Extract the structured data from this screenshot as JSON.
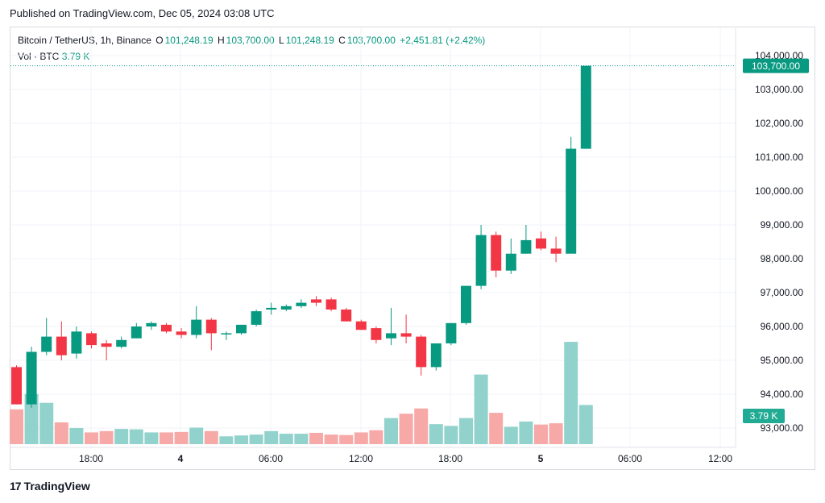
{
  "published": "Published on TradingView.com, Dec 05, 2024 03:08 UTC",
  "legend": {
    "symbol": "Bitcoin / TetherUS, 1h, Binance",
    "o_label": "O",
    "o": "101,248.19",
    "h_label": "H",
    "h": "103,700.00",
    "l_label": "L",
    "l": "101,248.19",
    "c_label": "C",
    "c": "103,700.00",
    "change": "+2,451.81 (+2.42%)"
  },
  "volume_label": {
    "name": "Vol · BTC",
    "value": "3.79 K"
  },
  "logo": {
    "mark": "17",
    "text": "TradingView"
  },
  "colors": {
    "up": "#089981",
    "down": "#f23645",
    "vol_up": "#92d2cc",
    "vol_down": "#f7a9a7"
  },
  "chart_data": {
    "type": "candlestick",
    "x_ticks": [
      "18:00",
      "4",
      "06:00",
      "12:00",
      "18:00",
      "5",
      "06:00",
      "12:00"
    ],
    "y_ticks": [
      "104,000.00",
      "103,000.00",
      "102,000.00",
      "101,000.00",
      "100,000.00",
      "99,000.00",
      "98,000.00",
      "97,000.00",
      "96,000.00",
      "95,000.00",
      "94,000.00",
      "93,000.00"
    ],
    "ylim": [
      92600,
      104400
    ],
    "last_price_label": "103,700.00",
    "last_volume_label": "3.79 K",
    "candles": [
      {
        "o": 94800,
        "h": 94850,
        "l": 93700,
        "c": 93700,
        "v": 0.8
      },
      {
        "o": 93700,
        "h": 95400,
        "l": 93600,
        "c": 95250,
        "v": 1.15
      },
      {
        "o": 95250,
        "h": 96250,
        "l": 95150,
        "c": 95700,
        "v": 0.95
      },
      {
        "o": 95700,
        "h": 96150,
        "l": 95000,
        "c": 95150,
        "v": 0.5
      },
      {
        "o": 95200,
        "h": 96000,
        "l": 95050,
        "c": 95850,
        "v": 0.37
      },
      {
        "o": 95800,
        "h": 95850,
        "l": 95350,
        "c": 95450,
        "v": 0.27
      },
      {
        "o": 95500,
        "h": 95600,
        "l": 95000,
        "c": 95400,
        "v": 0.3
      },
      {
        "o": 95400,
        "h": 95700,
        "l": 95350,
        "c": 95600,
        "v": 0.35
      },
      {
        "o": 95650,
        "h": 96100,
        "l": 95650,
        "c": 96000,
        "v": 0.34
      },
      {
        "o": 96000,
        "h": 96150,
        "l": 95900,
        "c": 96100,
        "v": 0.27
      },
      {
        "o": 96050,
        "h": 96100,
        "l": 95800,
        "c": 95850,
        "v": 0.27
      },
      {
        "o": 95850,
        "h": 95950,
        "l": 95650,
        "c": 95750,
        "v": 0.28
      },
      {
        "o": 95750,
        "h": 96600,
        "l": 95650,
        "c": 96200,
        "v": 0.38
      },
      {
        "o": 96200,
        "h": 96250,
        "l": 95300,
        "c": 95800,
        "v": 0.3
      },
      {
        "o": 95800,
        "h": 95850,
        "l": 95600,
        "c": 95800,
        "v": 0.18
      },
      {
        "o": 95800,
        "h": 96050,
        "l": 95750,
        "c": 96050,
        "v": 0.2
      },
      {
        "o": 96050,
        "h": 96500,
        "l": 96000,
        "c": 96450,
        "v": 0.22
      },
      {
        "o": 96500,
        "h": 96700,
        "l": 96350,
        "c": 96550,
        "v": 0.3
      },
      {
        "o": 96500,
        "h": 96650,
        "l": 96450,
        "c": 96600,
        "v": 0.24
      },
      {
        "o": 96600,
        "h": 96800,
        "l": 96550,
        "c": 96700,
        "v": 0.24
      },
      {
        "o": 96800,
        "h": 96900,
        "l": 96600,
        "c": 96700,
        "v": 0.26
      },
      {
        "o": 96800,
        "h": 96850,
        "l": 96450,
        "c": 96500,
        "v": 0.22
      },
      {
        "o": 96500,
        "h": 96550,
        "l": 96150,
        "c": 96150,
        "v": 0.21
      },
      {
        "o": 96150,
        "h": 96200,
        "l": 95900,
        "c": 95900,
        "v": 0.27
      },
      {
        "o": 95950,
        "h": 96000,
        "l": 95500,
        "c": 95600,
        "v": 0.32
      },
      {
        "o": 95650,
        "h": 96550,
        "l": 95450,
        "c": 95800,
        "v": 0.6
      },
      {
        "o": 95800,
        "h": 96350,
        "l": 95500,
        "c": 95700,
        "v": 0.7
      },
      {
        "o": 95700,
        "h": 95750,
        "l": 94550,
        "c": 94800,
        "v": 0.82
      },
      {
        "o": 94800,
        "h": 95500,
        "l": 94700,
        "c": 95500,
        "v": 0.46
      },
      {
        "o": 95500,
        "h": 96100,
        "l": 95450,
        "c": 96100,
        "v": 0.42
      },
      {
        "o": 96100,
        "h": 97200,
        "l": 96050,
        "c": 97200,
        "v": 0.6
      },
      {
        "o": 97200,
        "h": 99000,
        "l": 97100,
        "c": 98700,
        "v": 1.6
      },
      {
        "o": 98700,
        "h": 98800,
        "l": 97450,
        "c": 97650,
        "v": 0.72
      },
      {
        "o": 97650,
        "h": 98600,
        "l": 97550,
        "c": 98150,
        "v": 0.4
      },
      {
        "o": 98150,
        "h": 99000,
        "l": 98150,
        "c": 98550,
        "v": 0.52
      },
      {
        "o": 98600,
        "h": 98800,
        "l": 98250,
        "c": 98300,
        "v": 0.45
      },
      {
        "o": 98300,
        "h": 98650,
        "l": 97900,
        "c": 98150,
        "v": 0.48
      },
      {
        "o": 98150,
        "h": 101600,
        "l": 98150,
        "c": 101250,
        "v": 2.35
      },
      {
        "o": 101248.19,
        "h": 103700,
        "l": 101248.19,
        "c": 103700,
        "v": 0.9
      }
    ]
  }
}
